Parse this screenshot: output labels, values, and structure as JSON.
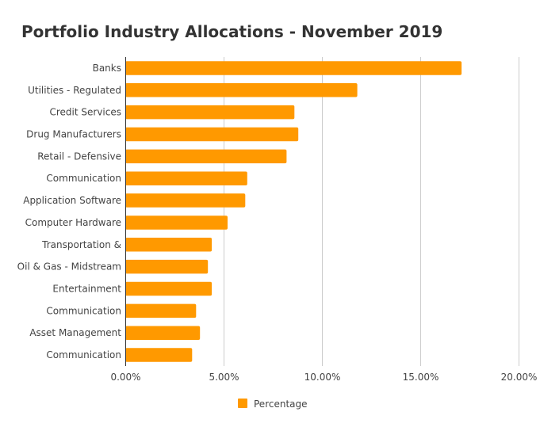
{
  "chart_data": {
    "type": "bar",
    "orientation": "horizontal",
    "title": "Portfolio Industry Allocations - November 2019",
    "xlabel": "",
    "ylabel": "",
    "categories": [
      "Banks",
      "Utilities - Regulated",
      "Credit Services",
      "Drug Manufacturers",
      "Retail - Defensive",
      "Communication",
      "Application Software",
      "Computer Hardware",
      "Transportation &",
      "Oil & Gas - Midstream",
      "Entertainment",
      "Communication",
      "Asset Management",
      "Communication"
    ],
    "series": [
      {
        "name": "Percentage",
        "color": "#ff9900",
        "values": [
          17.1,
          11.8,
          8.6,
          8.8,
          8.2,
          6.2,
          6.1,
          5.2,
          4.4,
          4.2,
          4.4,
          3.6,
          3.8,
          3.4
        ]
      }
    ],
    "xlim": [
      0,
      20
    ],
    "xticks": [
      "0.00%",
      "5.00%",
      "10.00%",
      "15.00%",
      "20.00%"
    ],
    "grid": true,
    "legend": "bottom"
  }
}
